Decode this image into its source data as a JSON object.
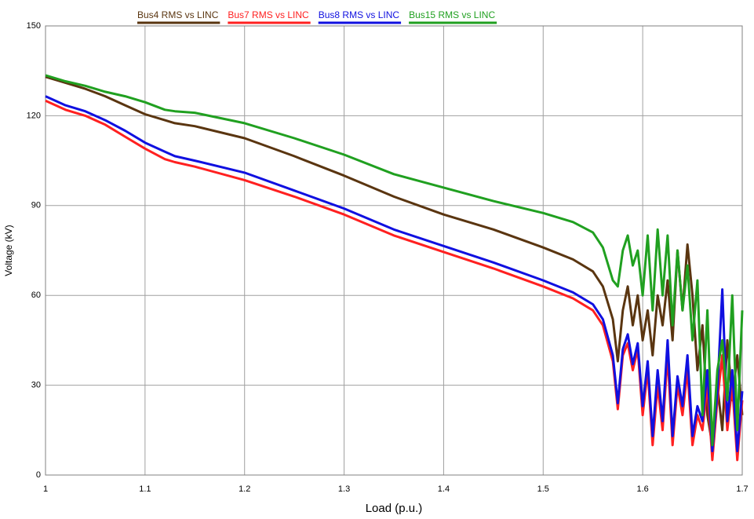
{
  "chart_data": {
    "type": "line",
    "x_label": "Load (p.u.)",
    "y_label": "Voltage (kV)",
    "x": [
      1.0,
      1.02,
      1.04,
      1.06,
      1.08,
      1.1,
      1.12,
      1.13,
      1.15,
      1.2,
      1.25,
      1.3,
      1.35,
      1.4,
      1.45,
      1.5,
      1.53,
      1.55,
      1.56,
      1.57,
      1.575,
      1.58,
      1.585,
      1.59,
      1.595,
      1.6,
      1.605,
      1.61,
      1.615,
      1.62,
      1.625,
      1.63,
      1.635,
      1.64,
      1.645,
      1.65,
      1.655,
      1.66,
      1.665,
      1.67,
      1.675,
      1.68,
      1.685,
      1.69,
      1.695,
      1.7
    ],
    "series": [
      {
        "name": "Bus4  RMS vs LINC",
        "color": "#5a3510",
        "values": [
          133,
          131,
          129,
          126.5,
          123.5,
          120.5,
          118.5,
          117.5,
          116.5,
          112.5,
          106.5,
          100,
          93,
          87,
          82,
          76,
          72,
          68,
          63,
          52,
          38,
          55,
          63,
          50,
          60,
          45,
          55,
          40,
          60,
          50,
          65,
          45,
          75,
          55,
          77,
          60,
          35,
          50,
          20,
          10,
          30,
          15,
          45,
          25,
          40,
          20
        ]
      },
      {
        "name": "Bus7  RMS vs LINC",
        "color": "#ff2020",
        "values": [
          125,
          122,
          120,
          117,
          113,
          109,
          105.5,
          104.5,
          103,
          98.5,
          93,
          87,
          80,
          74.5,
          69,
          63,
          59,
          55,
          50,
          38,
          22,
          40,
          44,
          35,
          42,
          20,
          35,
          10,
          30,
          15,
          40,
          10,
          30,
          20,
          35,
          10,
          20,
          15,
          30,
          5,
          25,
          40,
          15,
          30,
          5,
          25
        ]
      },
      {
        "name": "Bus8  RMS vs LINC",
        "color": "#1010e0",
        "values": [
          126.5,
          123.5,
          121.5,
          118.5,
          115,
          111,
          108,
          106.5,
          105,
          101,
          95,
          89,
          82,
          76.5,
          71,
          65,
          61,
          57,
          52,
          40,
          24,
          42,
          47,
          37,
          44,
          23,
          38,
          13,
          35,
          18,
          45,
          13,
          33,
          23,
          40,
          13,
          23,
          18,
          35,
          8,
          28,
          62,
          18,
          35,
          8,
          28
        ]
      },
      {
        "name": "Bus15  RMS vs LINC",
        "color": "#20a020",
        "values": [
          133.5,
          131.5,
          130,
          128,
          126.5,
          124.5,
          122,
          121.5,
          121,
          117.5,
          112.5,
          107,
          100.5,
          96,
          91.5,
          87.5,
          84.5,
          81,
          76,
          65,
          63,
          75,
          80,
          70,
          75,
          60,
          80,
          55,
          82,
          60,
          80,
          50,
          75,
          55,
          70,
          45,
          65,
          20,
          55,
          10,
          35,
          45,
          25,
          60,
          15,
          55
        ]
      }
    ],
    "xlim": [
      1,
      1.7
    ],
    "xticks": [
      1,
      1.1,
      1.2,
      1.3,
      1.4,
      1.5,
      1.6,
      1.7
    ],
    "ylim": [
      0,
      150
    ],
    "yticks": [
      0,
      30,
      60,
      90,
      120,
      150
    ],
    "grid": true,
    "legend": "top"
  }
}
